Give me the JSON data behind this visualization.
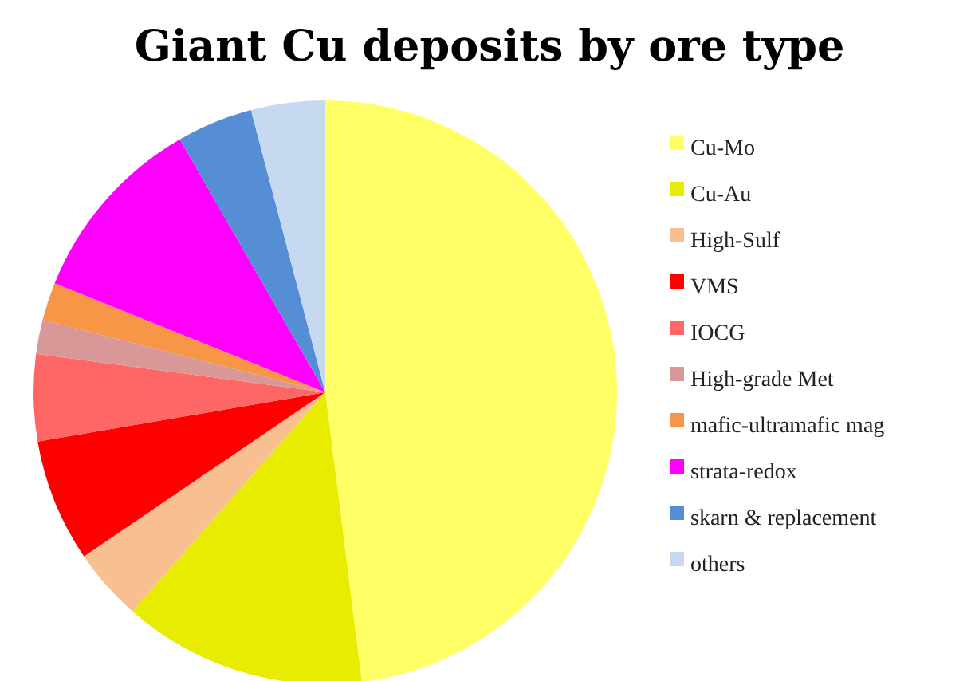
{
  "chart_data": {
    "type": "pie",
    "title": "Giant Cu deposits by ore type",
    "categories": [
      "Cu-Mo",
      "Cu-Au",
      "High-Sulf",
      "VMS",
      "IOCG",
      "High-grade Met",
      "mafic-ultramafic mag",
      "strata-redox",
      "skarn & replacement",
      "others"
    ],
    "values": [
      48.0,
      13.5,
      4.0,
      6.8,
      4.8,
      1.9,
      2.1,
      10.6,
      4.2,
      4.1
    ],
    "colors": [
      "#ffff66",
      "#e8ec00",
      "#f8c090",
      "#ff0000",
      "#ff6666",
      "#d89898",
      "#f79646",
      "#ff00ff",
      "#558ed5",
      "#c6d9f1"
    ],
    "legend": "right"
  }
}
